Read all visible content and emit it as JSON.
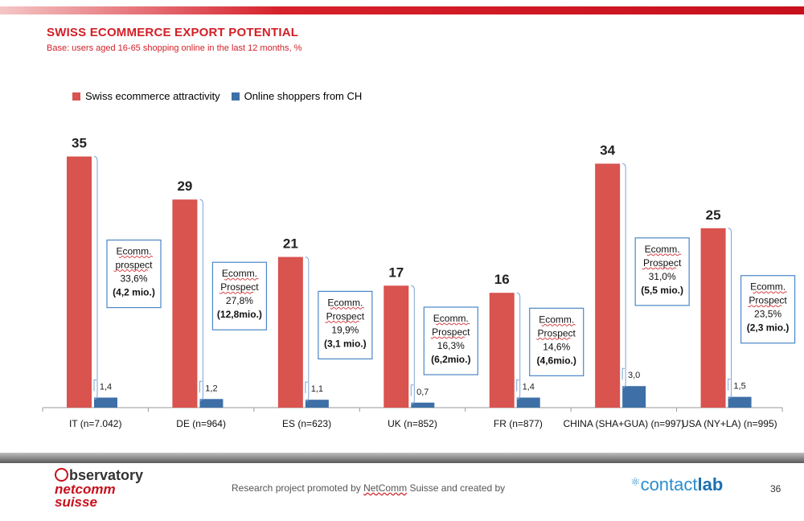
{
  "header": {
    "title": "SWISS ECOMMERCE EXPORT POTENTIAL",
    "subtitle": "Base: users aged 16-65 shopping online in the last 12 months, %"
  },
  "chart_data": {
    "type": "bar",
    "title": "SWISS ECOMMERCE EXPORT POTENTIAL",
    "subtitle": "Base: users aged 16-65 shopping online in the last 12 months, %",
    "categories": [
      "IT (n=7.042)",
      "DE (n=964)",
      "ES (n=623)",
      "UK (n=852)",
      "FR  (n=877)",
      "CHINA (SHA+GUA) (n=997)",
      "USA (NY+LA) (n=995)"
    ],
    "series": [
      {
        "name": "Swiss ecommerce attractivity",
        "color": "#d9534f",
        "values": [
          35,
          29,
          21,
          17,
          16,
          34,
          25
        ],
        "labels": [
          "35",
          "29",
          "21",
          "17",
          "16",
          "34",
          "25"
        ]
      },
      {
        "name": "Online shoppers from CH",
        "color": "#3e6fa6",
        "values": [
          1.4,
          1.2,
          1.1,
          0.7,
          1.4,
          3.0,
          1.5
        ],
        "labels": [
          "1,4",
          "1,2",
          "1,1",
          "0,7",
          "1,4",
          "3,0",
          "1,5"
        ]
      }
    ],
    "annotations": [
      {
        "line1": "Ecomm.",
        "line2": "prospect",
        "line3": "33,6%",
        "line4": "(4,2 mio.)"
      },
      {
        "line1": "Ecomm.",
        "line2": "Prospect",
        "line3": "27,8%",
        "line4": "(12,8mio.)"
      },
      {
        "line1": "Ecomm.",
        "line2": "Prospect",
        "line3": "19,9%",
        "line4": "(3,1 mio.)"
      },
      {
        "line1": "Ecomm.",
        "line2": "Prospect",
        "line3": "16,3%",
        "line4": "(6,2mio.)"
      },
      {
        "line1": "Ecomm.",
        "line2": "Prospect",
        "line3": "14,6%",
        "line4": "(4,6mio.)"
      },
      {
        "line1": "Ecomm.",
        "line2": "Prospect",
        "line3": "31,0%",
        "line4": "(5,5 mio.)"
      },
      {
        "line1": "Ecomm.",
        "line2": "Prospect",
        "line3": "23,5%",
        "line4": "(2,3 mio.)"
      }
    ],
    "ylim": [
      0,
      40
    ],
    "legend_position": "top-left",
    "grid": false
  },
  "footer": {
    "logo_left_top": "bservatory",
    "logo_left_mid": "netcomm",
    "logo_left_bot": "suisse",
    "text_before": "Research project promoted by ",
    "text_brand": "NetComm",
    "text_after": " Suisse and created by",
    "logo_right_a": "contact",
    "logo_right_b": "lab",
    "page_number": "36"
  },
  "colors": {
    "accent": "#d21f26",
    "bar_red": "#d9534f",
    "bar_blue": "#3e6fa6",
    "box_border": "#4a86c8"
  }
}
